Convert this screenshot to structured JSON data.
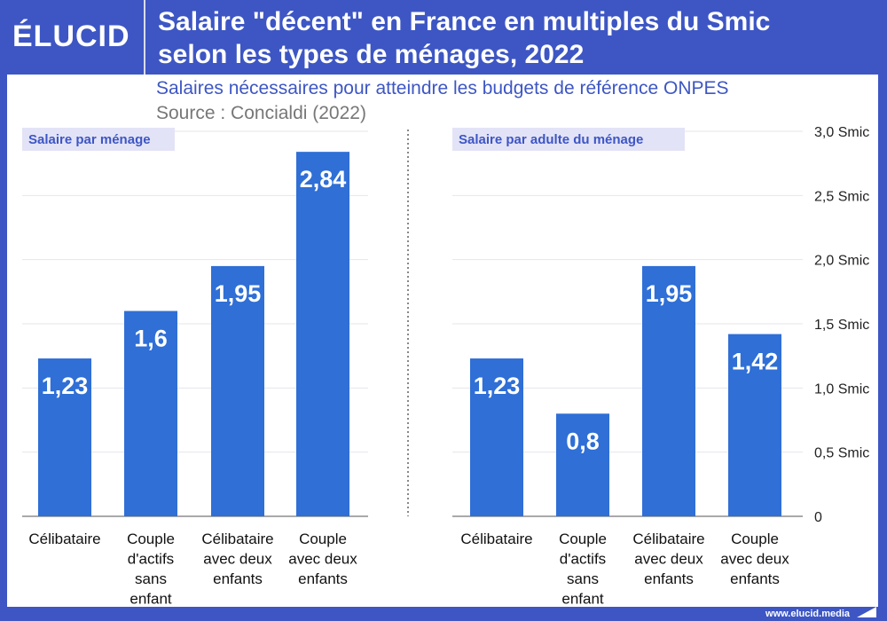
{
  "header": {
    "logo": "ÉLUCID",
    "title_line1": "Salaire \"décent\" en France en multiples du Smic",
    "title_line2": "selon les types de ménages, 2022",
    "subtitle": "Salaires nécessaires pour atteindre les budgets de référence ONPES",
    "source": "Source : Concialdi (2022)"
  },
  "footer": {
    "url": "www.elucid.media"
  },
  "colors": {
    "bar": "#2f6fd6",
    "frame": "#3d56c4",
    "panel_label_bg": "#e3e3f7",
    "panel_label_text": "#3d56c4"
  },
  "chart_data": [
    {
      "type": "bar",
      "panel_label": "Salaire par ménage",
      "categories": [
        [
          "Célibataire"
        ],
        [
          "Couple",
          "d'actifs",
          "sans",
          "enfant"
        ],
        [
          "Célibataire",
          "avec deux",
          "enfants"
        ],
        [
          "Couple",
          "avec deux",
          "enfants"
        ]
      ],
      "values": [
        1.23,
        1.6,
        1.95,
        2.84
      ],
      "value_labels": [
        "1,23",
        "1,6",
        "1,95",
        "2,84"
      ],
      "ylim": [
        0,
        3
      ],
      "grid": true
    },
    {
      "type": "bar",
      "panel_label": "Salaire par adulte du ménage",
      "categories": [
        [
          "Célibataire"
        ],
        [
          "Couple",
          "d'actifs",
          "sans",
          "enfant"
        ],
        [
          "Célibataire",
          "avec deux",
          "enfants"
        ],
        [
          "Couple",
          "avec deux",
          "enfants"
        ]
      ],
      "values": [
        1.23,
        0.8,
        1.95,
        1.42
      ],
      "value_labels": [
        "1,23",
        "0,8",
        "1,95",
        "1,42"
      ],
      "ylim": [
        0,
        3
      ],
      "grid": true,
      "yticks": [
        0,
        0.5,
        1,
        1.5,
        2,
        2.5,
        3
      ],
      "ytick_labels": [
        "0",
        "0,5 Smic",
        "1,0 Smic",
        "1,5 Smic",
        "2,0 Smic",
        "2,5 Smic",
        "3,0 Smic"
      ],
      "yaxis_position": "right"
    }
  ]
}
